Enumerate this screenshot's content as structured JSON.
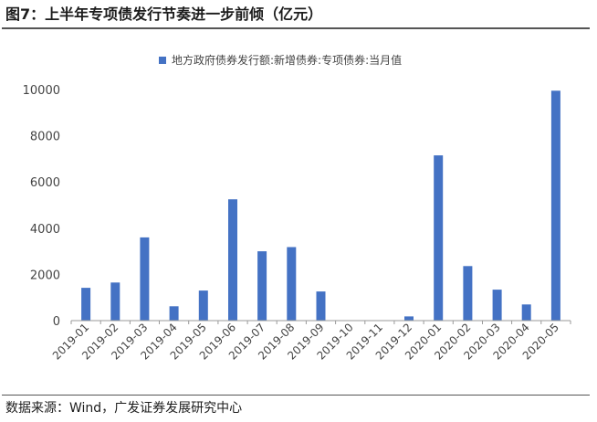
{
  "figure": {
    "title": "图7：上半年专项债发行节奏进一步前倾（亿元）",
    "source": "数据来源：Wind，广发证券发展研究中心"
  },
  "chart_data": {
    "type": "bar",
    "title": "",
    "xlabel": "",
    "ylabel": "",
    "categories": [
      "2019-01",
      "2019-02",
      "2019-03",
      "2019-04",
      "2019-05",
      "2019-06",
      "2019-07",
      "2019-08",
      "2019-09",
      "2019-10",
      "2019-11",
      "2019-12",
      "2020-01",
      "2020-02",
      "2020-03",
      "2020-04",
      "2020-05"
    ],
    "series": [
      {
        "name": "地方政府债券发行额:新增债券:专项债券:当月值",
        "color": "#4472c4",
        "values": [
          1420,
          1650,
          3600,
          620,
          1300,
          5250,
          3000,
          3180,
          1260,
          0,
          0,
          180,
          7150,
          2360,
          1340,
          700,
          9950
        ]
      }
    ],
    "ylim": [
      0,
      10000
    ],
    "yticks": [
      0,
      2000,
      4000,
      6000,
      8000,
      10000
    ],
    "ytick_labels": [
      "0",
      "2000",
      "4000",
      "6000",
      "8000",
      "10000"
    ],
    "grid": false,
    "legend": "top-center"
  }
}
